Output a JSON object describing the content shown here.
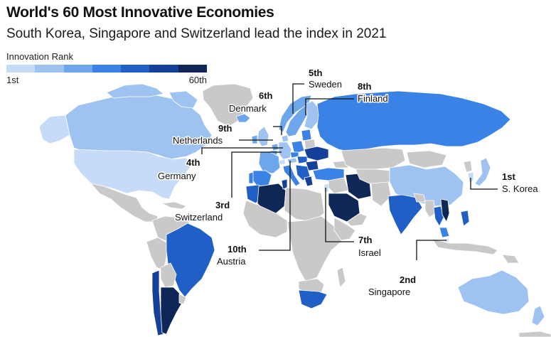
{
  "header": {
    "title": "World's 60 Most Innovative Economies",
    "subtitle": "South Korea, Singapore and Switzerland lead the index in 2021"
  },
  "legend": {
    "title": "Innovation Rank",
    "min_label": "1st",
    "max_label": "60th",
    "colors": [
      "#c6dbf7",
      "#9fc3f0",
      "#6ea6ec",
      "#3b82e6",
      "#1f5fc6",
      "#15409a",
      "#0f2757"
    ]
  },
  "map_colors": {
    "ocean": "#ffffff",
    "not_ranked": "#c9c9c9",
    "border": "#ffffff"
  },
  "annotations": [
    {
      "id": "sweden",
      "rank": "5th",
      "country": "Sweden"
    },
    {
      "id": "finland",
      "rank": "8th",
      "country": "Finland"
    },
    {
      "id": "denmark",
      "rank": "6th",
      "country": "Denmark"
    },
    {
      "id": "netherlands",
      "rank": "9th",
      "country": "Netherlands"
    },
    {
      "id": "germany",
      "rank": "4th",
      "country": "Germany"
    },
    {
      "id": "switzerland",
      "rank": "3rd",
      "country": "Switzerland"
    },
    {
      "id": "austria",
      "rank": "10th",
      "country": "Austria"
    },
    {
      "id": "israel",
      "rank": "7th",
      "country": "Israel"
    },
    {
      "id": "skorea",
      "rank": "1st",
      "country": "S. Korea"
    },
    {
      "id": "singapore",
      "rank": "2nd",
      "country": "Singapore"
    }
  ]
}
